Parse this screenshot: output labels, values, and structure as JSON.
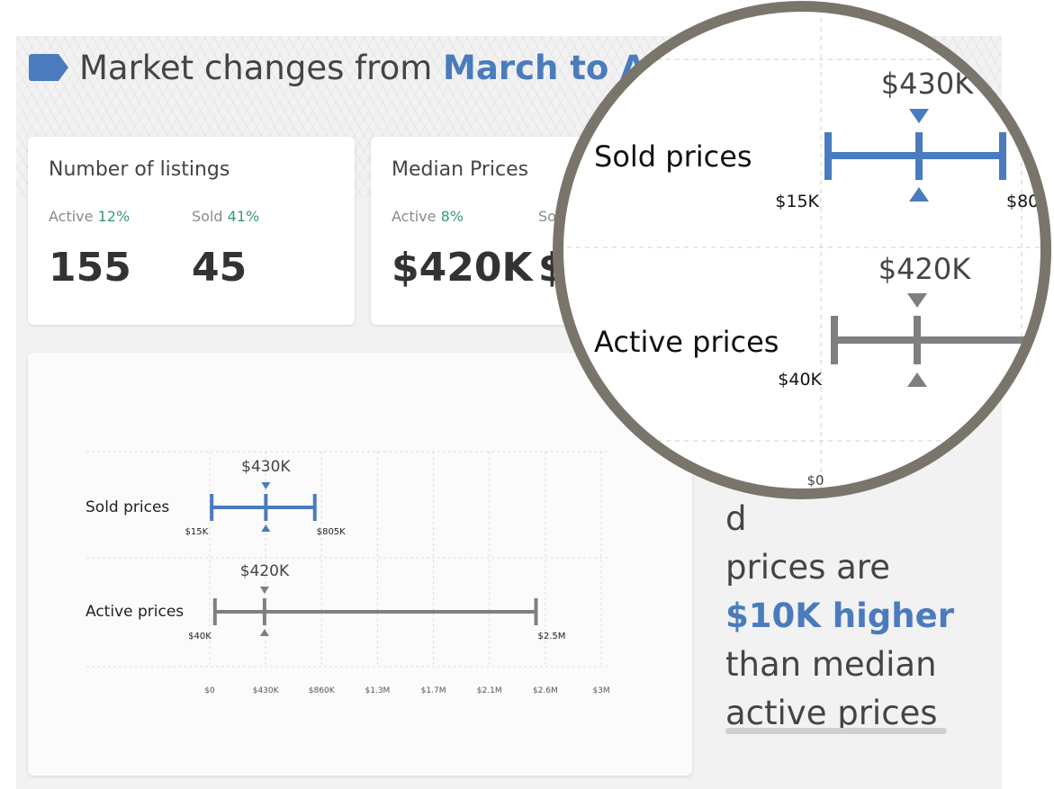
{
  "header": {
    "title_prefix": "Market changes from ",
    "title_highlight": "March to Ap"
  },
  "listings_card": {
    "title": "Number of listings",
    "active_label": "Active",
    "active_pct": "12%",
    "sold_label": "Sold",
    "sold_pct": "41%",
    "active_value": "155",
    "sold_value": "45"
  },
  "prices_card": {
    "title": "Median Prices",
    "active_label": "Active",
    "active_pct": "8%",
    "sold_label_partial": "So",
    "active_value": "$420K",
    "sold_value_partial": "$"
  },
  "summary": {
    "line1": "d",
    "line2": "prices are",
    "highlight": "$10K higher",
    "line4": "than median",
    "line5": "active prices"
  },
  "colors": {
    "sold": "#4a7bbf",
    "active": "#7f7f7f",
    "highlight_blue": "#4a7bbf",
    "pct_green": "#3a9a72",
    "magnifier_ring": "#7a756b"
  },
  "chart_data": {
    "type": "range",
    "x_ticks": [
      "$0",
      "$430K",
      "$860K",
      "$1.3M",
      "$1.7M",
      "$2.1M",
      "$2.6M",
      "$3M"
    ],
    "x_range": [
      0,
      3000000
    ],
    "series": [
      {
        "name": "Sold prices",
        "min": 15000,
        "median": 430000,
        "max": 805000,
        "min_label": "$15K",
        "median_label": "$430K",
        "max_label": "$805K"
      },
      {
        "name": "Active prices",
        "min": 40000,
        "median": 420000,
        "max": 2500000,
        "min_label": "$40K",
        "median_label": "$420K",
        "max_label": "$2.5M"
      }
    ],
    "grid": true
  },
  "magnifier": {
    "sold_label": "Sold prices",
    "sold_median": "$430K",
    "sold_min": "$15K",
    "sold_max_partial": "$80",
    "active_label": "Active prices",
    "active_median": "$420K",
    "active_min": "$40K",
    "axis_zero": "$0"
  }
}
